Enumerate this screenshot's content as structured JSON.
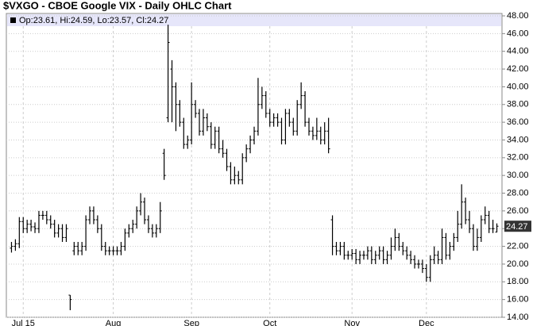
{
  "chart_data": {
    "type": "ohlc",
    "title": "$VXGO - CBOE Google VIX - Daily OHLC Chart",
    "info": "Op:23.61, Hi:24.59, Lo:23.57, Cl:24.27",
    "color": "#000000",
    "grid": true,
    "categories": [
      null,
      null,
      null,
      "Jul 15",
      null,
      null,
      null,
      null,
      null,
      null,
      null,
      null,
      null,
      null,
      null,
      null,
      null,
      null,
      null,
      null,
      null,
      null,
      null,
      null,
      null,
      null,
      "Aug",
      null,
      null,
      null,
      null,
      null,
      null,
      null,
      null,
      null,
      null,
      null,
      null,
      null,
      null,
      null,
      null,
      null,
      null,
      null,
      "Sep",
      null,
      null,
      null,
      null,
      null,
      null,
      null,
      null,
      null,
      null,
      null,
      null,
      null,
      null,
      null,
      null,
      null,
      null,
      null,
      "Oct",
      null,
      null,
      null,
      null,
      null,
      null,
      null,
      null,
      null,
      null,
      null,
      null,
      null,
      null,
      null,
      null,
      null,
      null,
      null,
      null,
      "Nov",
      null,
      null,
      null,
      null,
      null,
      null,
      null,
      null,
      null,
      null,
      null,
      null,
      null,
      null,
      null,
      null,
      null,
      null,
      "Dec",
      null,
      null,
      null,
      null,
      null,
      null,
      null,
      null,
      null,
      null,
      null,
      null,
      null,
      null,
      null,
      null,
      null,
      null
    ],
    "open": [
      21.8,
      22,
      22.3,
      24.8,
      24,
      24.5,
      24.2,
      24,
      25.5,
      25.5,
      25,
      24.5,
      23.5,
      24,
      23,
      16.5,
      21.5,
      22,
      21.5,
      22,
      25,
      26,
      25,
      24,
      22,
      21.5,
      21.5,
      21.5,
      21.5,
      22,
      23.5,
      24,
      24.5,
      26,
      27,
      25,
      24,
      23.5,
      24,
      32.5,
      36.5,
      42,
      40,
      38,
      36,
      33.5,
      34,
      38,
      37,
      35,
      36.5,
      35.5,
      33.5,
      35,
      33,
      32.5,
      31,
      29.5,
      30,
      29.5,
      32,
      33,
      34,
      35,
      38,
      39,
      37,
      36,
      36.5,
      36,
      34,
      37,
      36,
      35,
      38,
      39,
      36,
      35,
      34.5,
      35,
      34,
      35,
      25,
      22,
      21.5,
      22,
      21,
      21,
      21.2,
      20.5,
      21,
      21,
      21.5,
      20.5,
      21,
      21.5,
      20.5,
      21,
      22,
      23,
      22,
      21.5,
      21,
      20.5,
      20,
      20,
      19.5,
      18.5,
      20.5,
      21,
      20.5,
      23,
      21,
      22,
      23,
      24.5,
      27,
      25,
      24,
      22,
      23,
      25,
      25.5,
      24,
      23.61
    ],
    "high": [
      22.5,
      22.8,
      25.3,
      25.3,
      25,
      25,
      24.7,
      26,
      26,
      26,
      25.5,
      25,
      24.5,
      24.5,
      24.5,
      16.5,
      22.5,
      22.5,
      22.5,
      25.5,
      26.5,
      26.5,
      25.5,
      24.5,
      22.5,
      22,
      22,
      22,
      22.5,
      24,
      24.5,
      25,
      26.5,
      28,
      27.5,
      25.5,
      24.5,
      24.5,
      27,
      33,
      47,
      43,
      40.5,
      38.5,
      36.5,
      34.5,
      40.5,
      38.5,
      37.5,
      37.5,
      37,
      36,
      35.5,
      35.5,
      34,
      33,
      31.5,
      31,
      30.5,
      32.5,
      33.5,
      34.5,
      35.5,
      41,
      40,
      39.5,
      37.5,
      37,
      37,
      36.5,
      37.5,
      37.5,
      36.5,
      38.5,
      40.5,
      39.5,
      36.5,
      35.5,
      36.5,
      35.5,
      36,
      36.5,
      25.5,
      22.5,
      22.5,
      22.5,
      21.5,
      21.7,
      21.7,
      21.5,
      21.5,
      22,
      22,
      21.5,
      22,
      22,
      21.5,
      23,
      24,
      23.5,
      22.5,
      22,
      21.5,
      21,
      20.5,
      20.5,
      20,
      21,
      22,
      21.5,
      24,
      23.5,
      22.5,
      23.5,
      26,
      29,
      27.5,
      26,
      24.5,
      24,
      25.5,
      26.5,
      26,
      25,
      24.59
    ],
    "low": [
      21.3,
      21.5,
      21.8,
      23.5,
      23.5,
      23.7,
      23.5,
      23.5,
      25,
      24.5,
      24,
      23,
      23,
      22.5,
      22.5,
      14.8,
      21,
      21,
      21,
      21.5,
      24.5,
      24.5,
      23.5,
      21.5,
      21,
      21,
      21,
      21,
      21,
      21.5,
      23,
      23.5,
      24,
      25.5,
      24.5,
      23.5,
      23,
      23,
      23.5,
      29.5,
      36,
      36,
      35,
      35.5,
      33,
      33,
      33.5,
      36.5,
      34.5,
      34.5,
      35,
      33,
      33,
      32.5,
      32,
      30.5,
      29,
      29,
      29,
      29,
      31.5,
      32.5,
      33.5,
      34.5,
      37.5,
      36.5,
      35.5,
      35.5,
      35.5,
      33.5,
      33.5,
      35.5,
      34.5,
      34.5,
      37.5,
      35.5,
      34.5,
      34,
      34,
      33.5,
      33.5,
      32.5,
      21,
      21,
      21,
      20.5,
      20.5,
      20.5,
      20,
      20,
      20.5,
      20.5,
      20,
      20,
      20.5,
      20,
      20,
      20.5,
      21.5,
      21.5,
      21,
      20.5,
      20,
      19.5,
      19.5,
      19,
      18,
      18,
      20,
      20,
      20,
      20.5,
      20.5,
      21.5,
      22.5,
      24,
      24.5,
      23.5,
      21.5,
      21.5,
      22.5,
      24.5,
      23.5,
      23.5,
      23.57
    ],
    "close": [
      22,
      22.3,
      24.8,
      24,
      24.5,
      24.2,
      24,
      25.5,
      25.5,
      25,
      24.5,
      23.5,
      24,
      23,
      24,
      16,
      22,
      21.5,
      22,
      25,
      26,
      25,
      24,
      22,
      21.5,
      21.5,
      21.5,
      21.5,
      22,
      23.5,
      24,
      24.5,
      26,
      27,
      25,
      24,
      23.5,
      24,
      26,
      30,
      45,
      40,
      38,
      36,
      33.5,
      34,
      38,
      37,
      35,
      36.5,
      35.5,
      33.5,
      35,
      33,
      32.5,
      31,
      29.5,
      30,
      29.5,
      32,
      33,
      34,
      35,
      38,
      39,
      37,
      36,
      36.5,
      36,
      34,
      37,
      36,
      35,
      38,
      39,
      36,
      35,
      34.5,
      35,
      34,
      35,
      33,
      22,
      21.5,
      22,
      21,
      21,
      21.2,
      20.5,
      21,
      21,
      21.5,
      20.5,
      21,
      21.5,
      20.5,
      21,
      22,
      23,
      22,
      21.5,
      21,
      20.5,
      20,
      20,
      19.5,
      18.5,
      20.5,
      21,
      20.5,
      23,
      21,
      22,
      23,
      24.5,
      27,
      25,
      24,
      22,
      23,
      25,
      25.5,
      24,
      24,
      24.27
    ],
    "ylim": [
      14,
      48
    ],
    "yticks": [
      {
        "value": 14,
        "label": "14.00"
      },
      {
        "value": 16,
        "label": "16.00"
      },
      {
        "value": 18,
        "label": "18.00"
      },
      {
        "value": 20,
        "label": "20.00"
      },
      {
        "value": 22,
        "label": "22.00"
      },
      {
        "value": 24,
        "label": "24.00"
      },
      {
        "value": 26,
        "label": "26.00"
      },
      {
        "value": 28,
        "label": "28.00"
      },
      {
        "value": 30,
        "label": "30.00"
      },
      {
        "value": 32,
        "label": "32.00"
      },
      {
        "value": 34,
        "label": "34.00"
      },
      {
        "value": 36,
        "label": "36.00"
      },
      {
        "value": 38,
        "label": "38.00"
      },
      {
        "value": 40,
        "label": "40.00"
      },
      {
        "value": 42,
        "label": "42.00"
      },
      {
        "value": 44,
        "label": "44.00"
      },
      {
        "value": 46,
        "label": "46.00"
      },
      {
        "value": 48,
        "label": "48.00"
      }
    ]
  }
}
